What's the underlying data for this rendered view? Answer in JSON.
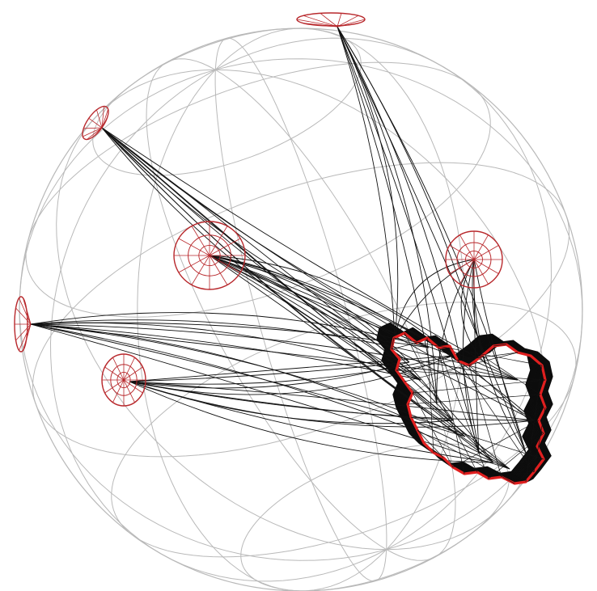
{
  "figure": {
    "kind": "sphere-wireframe-with-radial-cones-and-closed-contour",
    "colors": {
      "grid": "#b9b9b9",
      "arc": "#111111",
      "cone": "#b8282c",
      "contour": "#e01f1f",
      "band": "#0c0c0c",
      "background": "#ffffff"
    },
    "grid": {
      "meridian_count": 6,
      "parallel_count": 5
    },
    "cones": [
      {
        "id": "cone-top",
        "arc_count": 9
      },
      {
        "id": "cone-upper-left",
        "arc_count": 11
      },
      {
        "id": "cone-center-left",
        "arc_count": 14
      },
      {
        "id": "cone-right",
        "arc_count": 9
      },
      {
        "id": "cone-left-edge",
        "arc_count": 12
      },
      {
        "id": "cone-lower-left",
        "arc_count": 12
      }
    ]
  }
}
